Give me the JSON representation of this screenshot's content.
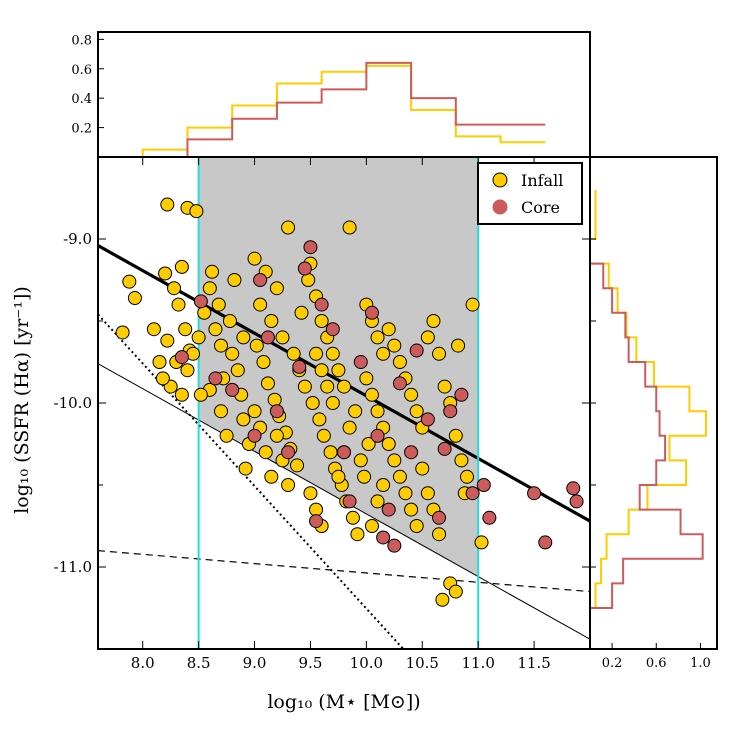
{
  "chart_data": {
    "type": "scatter",
    "xlabel": "log₁₀ (M⋆ [M⊙])",
    "ylabel": "log₁₀ (SSFR (Hα) [yr⁻¹])",
    "xlim": [
      7.6,
      12.0
    ],
    "ylim": [
      -11.5,
      -8.5
    ],
    "x_ticks": [
      "8.0",
      "8.5",
      "9.0",
      "9.5",
      "10.0",
      "10.5",
      "11.0",
      "11.5"
    ],
    "x_tick_values": [
      8.0,
      8.5,
      9.0,
      9.5,
      10.0,
      10.5,
      11.0,
      11.5
    ],
    "y_ticks": [
      "-9.0",
      "-10.0",
      "-11.0"
    ],
    "y_tick_values": [
      -9.0,
      -10.0,
      -11.0
    ],
    "y_minor_values": [
      -9.5,
      -10.5
    ],
    "shaded_region": {
      "x_min": 8.5,
      "x_max": 11.0
    },
    "vertical_lines": [
      8.5,
      11.0
    ],
    "lines": [
      {
        "name": "thick-sequence",
        "x": [
          7.6,
          12.0
        ],
        "y": [
          -9.04,
          -10.72
        ]
      },
      {
        "name": "thin-lower-limit",
        "x": [
          7.6,
          12.0
        ],
        "y": [
          -9.76,
          -11.44
        ]
      },
      {
        "name": "dashed-limit",
        "x": [
          7.6,
          12.0
        ],
        "y": [
          -10.9,
          -11.15
        ]
      },
      {
        "name": "dotted-limit",
        "x": [
          7.6,
          10.33
        ],
        "y": [
          -9.46,
          -11.5
        ]
      }
    ],
    "legend": {
      "placement": "top-right",
      "entries": [
        "Infall",
        "Core"
      ]
    },
    "series": [
      {
        "name": "Infall",
        "color": "#FFCC00",
        "points": [
          [
            7.82,
            -9.57
          ],
          [
            7.88,
            -9.26
          ],
          [
            7.93,
            -9.36
          ],
          [
            8.22,
            -8.79
          ],
          [
            8.2,
            -9.21
          ],
          [
            8.35,
            -9.17
          ],
          [
            8.4,
            -8.81
          ],
          [
            8.48,
            -8.83
          ],
          [
            8.28,
            -9.3
          ],
          [
            8.32,
            -9.4
          ],
          [
            8.38,
            -9.55
          ],
          [
            8.42,
            -9.68
          ],
          [
            8.22,
            -9.62
          ],
          [
            8.3,
            -9.75
          ],
          [
            8.25,
            -9.9
          ],
          [
            8.35,
            -9.95
          ],
          [
            8.4,
            -9.8
          ],
          [
            8.45,
            -9.7
          ],
          [
            8.5,
            -9.6
          ],
          [
            8.1,
            -9.55
          ],
          [
            8.15,
            -9.75
          ],
          [
            8.18,
            -9.85
          ],
          [
            8.55,
            -9.45
          ],
          [
            8.6,
            -9.3
          ],
          [
            8.65,
            -9.55
          ],
          [
            8.7,
            -9.65
          ],
          [
            8.72,
            -9.85
          ],
          [
            8.6,
            -9.92
          ],
          [
            8.52,
            -9.95
          ],
          [
            8.78,
            -9.5
          ],
          [
            8.8,
            -9.7
          ],
          [
            8.85,
            -9.8
          ],
          [
            8.88,
            -9.95
          ],
          [
            8.9,
            -10.1
          ],
          [
            8.95,
            -10.25
          ],
          [
            8.92,
            -10.4
          ],
          [
            8.75,
            -10.2
          ],
          [
            8.7,
            -10.05
          ],
          [
            9.0,
            -9.12
          ],
          [
            9.1,
            -9.2
          ],
          [
            9.2,
            -9.3
          ],
          [
            9.3,
            -8.93
          ],
          [
            9.05,
            -9.4
          ],
          [
            9.15,
            -9.5
          ],
          [
            9.25,
            -9.6
          ],
          [
            9.35,
            -9.7
          ],
          [
            9.4,
            -9.8
          ],
          [
            9.45,
            -9.9
          ],
          [
            9.02,
            -9.65
          ],
          [
            9.08,
            -9.75
          ],
          [
            9.12,
            -9.88
          ],
          [
            9.18,
            -9.98
          ],
          [
            9.22,
            -10.08
          ],
          [
            9.28,
            -10.18
          ],
          [
            9.32,
            -10.28
          ],
          [
            9.38,
            -10.38
          ],
          [
            9.0,
            -10.05
          ],
          [
            9.05,
            -10.15
          ],
          [
            9.1,
            -10.3
          ],
          [
            9.15,
            -10.45
          ],
          [
            9.5,
            -9.15
          ],
          [
            9.55,
            -9.35
          ],
          [
            9.6,
            -9.5
          ],
          [
            9.65,
            -9.6
          ],
          [
            9.7,
            -9.7
          ],
          [
            9.75,
            -9.8
          ],
          [
            9.8,
            -9.9
          ],
          [
            9.85,
            -8.93
          ],
          [
            9.52,
            -10.0
          ],
          [
            9.58,
            -10.1
          ],
          [
            9.62,
            -10.2
          ],
          [
            9.68,
            -10.3
          ],
          [
            9.72,
            -10.4
          ],
          [
            9.78,
            -10.5
          ],
          [
            9.82,
            -10.6
          ],
          [
            9.88,
            -10.7
          ],
          [
            9.5,
            -10.55
          ],
          [
            9.55,
            -10.65
          ],
          [
            9.6,
            -10.75
          ],
          [
            9.92,
            -10.8
          ],
          [
            10.0,
            -9.4
          ],
          [
            10.05,
            -9.5
          ],
          [
            10.1,
            -9.6
          ],
          [
            10.15,
            -9.7
          ],
          [
            10.2,
            -9.55
          ],
          [
            10.25,
            -9.65
          ],
          [
            10.0,
            -9.85
          ],
          [
            10.05,
            -9.95
          ],
          [
            10.1,
            -10.05
          ],
          [
            10.15,
            -10.15
          ],
          [
            10.2,
            -10.25
          ],
          [
            10.25,
            -10.35
          ],
          [
            10.3,
            -10.45
          ],
          [
            10.35,
            -10.55
          ],
          [
            10.4,
            -10.65
          ],
          [
            10.05,
            -10.75
          ],
          [
            10.1,
            -10.6
          ],
          [
            10.15,
            -10.5
          ],
          [
            10.3,
            -9.75
          ],
          [
            10.35,
            -9.85
          ],
          [
            10.4,
            -9.95
          ],
          [
            10.45,
            -10.05
          ],
          [
            10.5,
            -10.15
          ],
          [
            10.55,
            -9.6
          ],
          [
            10.6,
            -9.5
          ],
          [
            10.65,
            -9.7
          ],
          [
            10.7,
            -9.9
          ],
          [
            10.75,
            -10.0
          ],
          [
            10.8,
            -10.2
          ],
          [
            10.85,
            -10.35
          ],
          [
            10.9,
            -10.45
          ],
          [
            10.95,
            -9.4
          ],
          [
            10.82,
            -9.65
          ],
          [
            10.5,
            -10.4
          ],
          [
            10.55,
            -10.55
          ],
          [
            10.6,
            -10.65
          ],
          [
            10.65,
            -10.8
          ],
          [
            10.45,
            -10.75
          ],
          [
            10.68,
            -11.2
          ],
          [
            10.75,
            -11.1
          ],
          [
            10.8,
            -11.15
          ],
          [
            11.03,
            -10.85
          ],
          [
            10.88,
            -10.55
          ],
          [
            8.62,
            -9.2
          ],
          [
            8.68,
            -9.4
          ],
          [
            8.82,
            -9.25
          ],
          [
            8.9,
            -9.6
          ],
          [
            9.42,
            -9.45
          ],
          [
            9.48,
            -9.25
          ],
          [
            9.3,
            -10.5
          ],
          [
            9.25,
            -10.35
          ],
          [
            9.2,
            -10.2
          ],
          [
            9.95,
            -10.35
          ],
          [
            9.98,
            -10.45
          ],
          [
            10.02,
            -10.25
          ],
          [
            9.9,
            -10.05
          ],
          [
            9.85,
            -10.15
          ],
          [
            9.8,
            -10.3
          ],
          [
            9.75,
            -10.45
          ],
          [
            9.7,
            -10.0
          ],
          [
            9.65,
            -9.9
          ],
          [
            9.6,
            -9.8
          ],
          [
            9.55,
            -9.7
          ]
        ]
      },
      {
        "name": "Core",
        "color": "#CC5C5C",
        "points": [
          [
            8.35,
            -9.72
          ],
          [
            8.52,
            -9.38
          ],
          [
            8.65,
            -9.85
          ],
          [
            8.8,
            -9.92
          ],
          [
            9.05,
            -9.25
          ],
          [
            9.12,
            -9.6
          ],
          [
            9.2,
            -10.05
          ],
          [
            9.4,
            -9.78
          ],
          [
            9.45,
            -9.18
          ],
          [
            9.5,
            -9.05
          ],
          [
            9.6,
            -9.4
          ],
          [
            9.7,
            -9.55
          ],
          [
            9.8,
            -10.3
          ],
          [
            9.85,
            -10.6
          ],
          [
            9.95,
            -9.75
          ],
          [
            10.05,
            -9.45
          ],
          [
            10.1,
            -10.2
          ],
          [
            10.2,
            -10.65
          ],
          [
            10.3,
            -9.88
          ],
          [
            10.4,
            -10.3
          ],
          [
            10.45,
            -9.68
          ],
          [
            10.55,
            -10.1
          ],
          [
            10.65,
            -10.7
          ],
          [
            10.7,
            -10.28
          ],
          [
            10.75,
            -10.05
          ],
          [
            10.85,
            -9.95
          ],
          [
            10.95,
            -10.55
          ],
          [
            11.05,
            -10.5
          ],
          [
            11.1,
            -10.7
          ],
          [
            11.5,
            -10.55
          ],
          [
            11.6,
            -10.85
          ],
          [
            11.85,
            -10.52
          ],
          [
            11.88,
            -10.6
          ],
          [
            9.55,
            -10.72
          ],
          [
            9.3,
            -10.3
          ],
          [
            9.0,
            -10.2
          ],
          [
            10.15,
            -10.82
          ],
          [
            10.25,
            -10.87
          ]
        ]
      }
    ],
    "top_histogram": {
      "bin_edges": [
        7.6,
        8.0,
        8.4,
        8.8,
        9.2,
        9.6,
        10.0,
        10.4,
        10.8,
        11.2,
        11.6
      ],
      "y_ticks": [
        "0.2",
        "0.4",
        "0.6",
        "0.8"
      ],
      "y_tick_values": [
        0.2,
        0.4,
        0.6,
        0.8
      ],
      "ylim": [
        0,
        0.85
      ],
      "series": [
        {
          "name": "Infall",
          "color": "#FFCC00",
          "values": [
            0.0,
            0.05,
            0.2,
            0.35,
            0.5,
            0.58,
            0.62,
            0.32,
            0.14,
            0.1
          ]
        },
        {
          "name": "Core",
          "color": "#CC5C5C",
          "values": [
            0.0,
            0.0,
            0.12,
            0.26,
            0.37,
            0.46,
            0.64,
            0.4,
            0.22,
            0.22
          ]
        }
      ]
    },
    "right_histogram": {
      "bin_edges": [
        -8.7,
        -8.85,
        -9.0,
        -9.15,
        -9.3,
        -9.45,
        -9.6,
        -9.75,
        -9.9,
        -10.05,
        -10.2,
        -10.35,
        -10.5,
        -10.65,
        -10.8,
        -10.95,
        -11.1,
        -11.25,
        -11.4
      ],
      "x_ticks": [
        "0.2",
        "0.6",
        "1.0"
      ],
      "x_tick_values": [
        0.2,
        0.6,
        1.0
      ],
      "xlim": [
        0,
        1.15
      ],
      "series": [
        {
          "name": "Infall",
          "color": "#FFCC00",
          "values": [
            0.05,
            0.05,
            0.0,
            0.17,
            0.25,
            0.33,
            0.42,
            0.58,
            0.9,
            1.05,
            0.72,
            0.87,
            0.52,
            0.35,
            0.15,
            0.1,
            0.05,
            0.0
          ]
        },
        {
          "name": "Core",
          "color": "#CC5C5C",
          "values": [
            0.0,
            0.0,
            0.0,
            0.12,
            0.2,
            0.32,
            0.35,
            0.5,
            0.6,
            0.63,
            0.68,
            0.6,
            0.45,
            0.82,
            1.02,
            0.3,
            0.2,
            0.0
          ]
        }
      ]
    }
  }
}
